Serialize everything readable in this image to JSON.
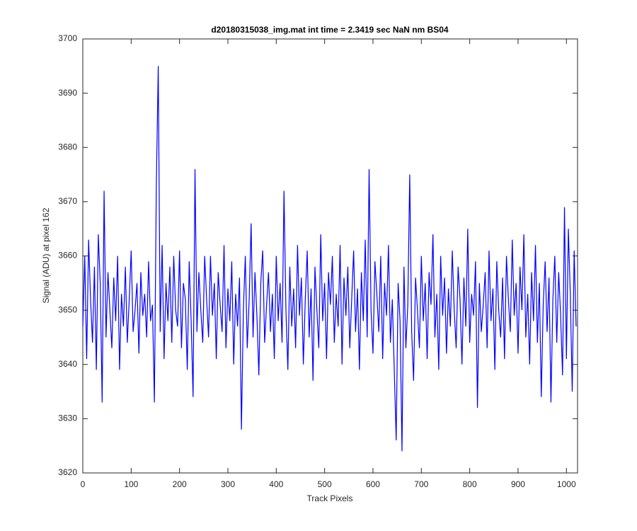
{
  "chart_data": {
    "type": "line",
    "title": "d20180315038_img.mat int time = 2.3419 sec  NaN nm BS04",
    "xlabel": "Track Pixels",
    "ylabel": "Signal (ADU) at pixel 162",
    "xlim": [
      0,
      1023
    ],
    "ylim": [
      3620,
      3700
    ],
    "xticks": [
      0,
      100,
      200,
      300,
      400,
      500,
      600,
      700,
      800,
      900,
      1000
    ],
    "yticks": [
      3620,
      3630,
      3640,
      3650,
      3660,
      3670,
      3680,
      3690,
      3700
    ],
    "x": [
      0,
      4,
      8,
      12,
      16,
      20,
      24,
      28,
      32,
      36,
      40,
      44,
      48,
      52,
      56,
      60,
      64,
      68,
      72,
      76,
      80,
      84,
      88,
      92,
      96,
      100,
      104,
      108,
      112,
      116,
      120,
      124,
      128,
      132,
      136,
      140,
      144,
      148,
      152,
      156,
      160,
      164,
      168,
      172,
      176,
      180,
      184,
      188,
      192,
      196,
      200,
      204,
      208,
      212,
      216,
      220,
      224,
      228,
      232,
      236,
      240,
      244,
      248,
      252,
      256,
      260,
      264,
      268,
      272,
      276,
      280,
      284,
      288,
      292,
      296,
      300,
      304,
      308,
      312,
      316,
      320,
      324,
      328,
      332,
      336,
      340,
      344,
      348,
      352,
      356,
      360,
      364,
      368,
      372,
      376,
      380,
      384,
      388,
      392,
      396,
      400,
      404,
      408,
      412,
      416,
      420,
      424,
      428,
      432,
      436,
      440,
      444,
      448,
      452,
      456,
      460,
      464,
      468,
      472,
      476,
      480,
      484,
      488,
      492,
      496,
      500,
      504,
      508,
      512,
      516,
      520,
      524,
      528,
      532,
      536,
      540,
      544,
      548,
      552,
      556,
      560,
      564,
      568,
      572,
      576,
      580,
      584,
      588,
      592,
      596,
      600,
      604,
      608,
      612,
      616,
      620,
      624,
      628,
      632,
      636,
      640,
      644,
      648,
      652,
      656,
      660,
      664,
      668,
      672,
      676,
      680,
      684,
      688,
      692,
      696,
      700,
      704,
      708,
      712,
      716,
      720,
      724,
      728,
      732,
      736,
      740,
      744,
      748,
      752,
      756,
      760,
      764,
      768,
      772,
      776,
      780,
      784,
      788,
      792,
      796,
      800,
      804,
      808,
      812,
      816,
      820,
      824,
      828,
      832,
      836,
      840,
      844,
      848,
      852,
      856,
      860,
      864,
      868,
      872,
      876,
      880,
      884,
      888,
      892,
      896,
      900,
      904,
      908,
      912,
      916,
      920,
      924,
      928,
      932,
      936,
      940,
      944,
      948,
      952,
      956,
      960,
      964,
      968,
      972,
      976,
      980,
      984,
      988,
      992,
      996,
      1000,
      1004,
      1008,
      1012,
      1016,
      1020
    ],
    "series": [
      {
        "name": "signal",
        "color": "#0000ff",
        "values": [
          3647,
          3660,
          3641,
          3663,
          3652,
          3644,
          3658,
          3639,
          3664,
          3655,
          3633,
          3672,
          3645,
          3657,
          3650,
          3643,
          3656,
          3648,
          3660,
          3639,
          3653,
          3647,
          3658,
          3644,
          3652,
          3661,
          3646,
          3650,
          3655,
          3642,
          3657,
          3649,
          3653,
          3645,
          3659,
          3648,
          3651,
          3633,
          3673,
          3695,
          3646,
          3662,
          3641,
          3655,
          3648,
          3658,
          3644,
          3660,
          3650,
          3647,
          3661,
          3643,
          3655,
          3652,
          3639,
          3659,
          3648,
          3634,
          3676,
          3646,
          3657,
          3650,
          3644,
          3660,
          3652,
          3645,
          3660,
          3649,
          3655,
          3641,
          3657,
          3651,
          3646,
          3662,
          3643,
          3654,
          3648,
          3659,
          3640,
          3653,
          3647,
          3656,
          3628,
          3650,
          3660,
          3643,
          3652,
          3666,
          3645,
          3657,
          3649,
          3638,
          3655,
          3661,
          3644,
          3651,
          3657,
          3646,
          3653,
          3641,
          3660,
          3648,
          3655,
          3644,
          3672,
          3650,
          3639,
          3658,
          3647,
          3654,
          3643,
          3662,
          3649,
          3656,
          3640,
          3652,
          3661,
          3645,
          3654,
          3637,
          3658,
          3650,
          3643,
          3664,
          3648,
          3655,
          3641,
          3657,
          3651,
          3660,
          3644,
          3653,
          3647,
          3662,
          3640,
          3656,
          3649,
          3658,
          3643,
          3652,
          3661,
          3646,
          3654,
          3639,
          3657,
          3648,
          3663,
          3645,
          3676,
          3650,
          3642,
          3659,
          3653,
          3646,
          3660,
          3641,
          3655,
          3649,
          3662,
          3644,
          3652,
          3639,
          3626,
          3655,
          3648,
          3624,
          3658,
          3643,
          3651,
          3675,
          3646,
          3637,
          3656,
          3650,
          3643,
          3660,
          3648,
          3655,
          3641,
          3657,
          3651,
          3664,
          3645,
          3653,
          3639,
          3660,
          3649,
          3656,
          3642,
          3654,
          3647,
          3661,
          3650,
          3643,
          3658,
          3652,
          3640,
          3656,
          3647,
          3665,
          3644,
          3653,
          3649,
          3659,
          3632,
          3655,
          3646,
          3651,
          3657,
          3643,
          3661,
          3648,
          3654,
          3639,
          3659,
          3650,
          3645,
          3656,
          3641,
          3660,
          3652,
          3646,
          3663,
          3649,
          3655,
          3642,
          3658,
          3650,
          3664,
          3645,
          3653,
          3640,
          3657,
          3648,
          3662,
          3644,
          3655,
          3634,
          3651,
          3659,
          3646,
          3656,
          3633,
          3652,
          3660,
          3644,
          3657,
          3649,
          3638,
          3669,
          3641,
          3665,
          3653,
          3635,
          3661,
          3647
        ]
      }
    ]
  }
}
